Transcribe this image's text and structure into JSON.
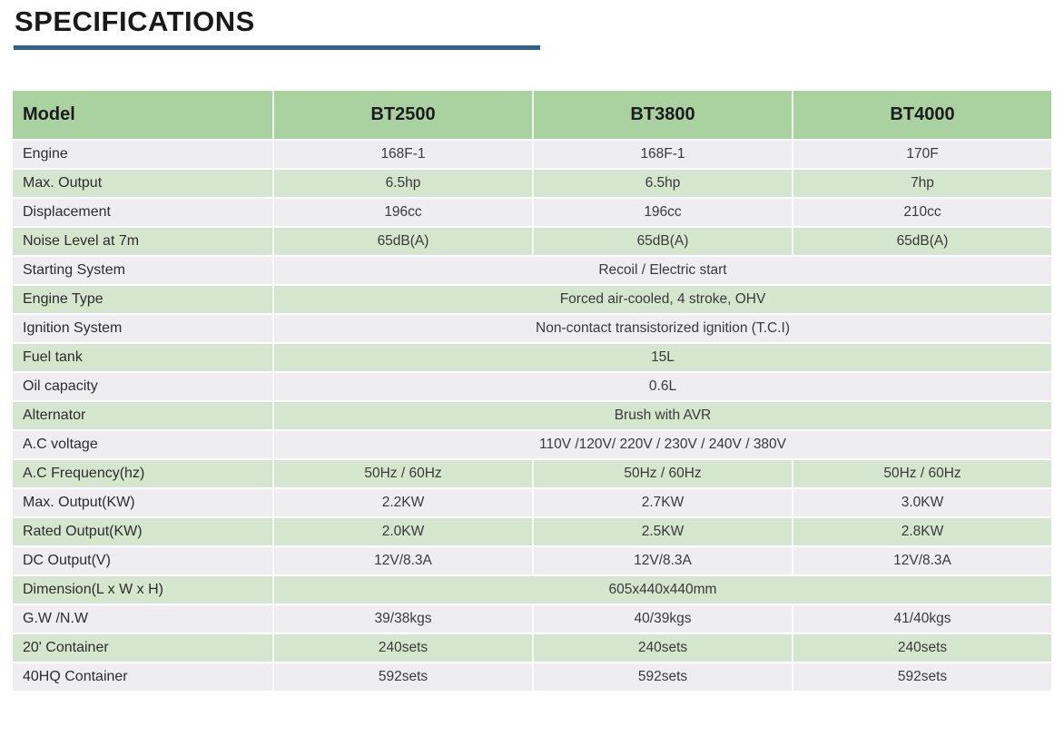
{
  "header": {
    "title": "SPECIFICATIONS"
  },
  "theme": {
    "title_color": "#1a1a1a",
    "rule_color": "#2e618e",
    "header_bg": "#aad1a0",
    "row_green_bg": "#d4e6cd",
    "row_gray_bg": "#eeedef",
    "label_text_color": "#2d2d2d",
    "value_text_color": "#3a3a3a"
  },
  "table": {
    "columns": [
      "Model",
      "BT2500",
      "BT3800",
      "BT4000"
    ],
    "rows": [
      {
        "label": "Engine",
        "values": [
          "168F-1",
          "168F-1",
          "170F"
        ]
      },
      {
        "label": "Max. Output",
        "values": [
          "6.5hp",
          "6.5hp",
          "7hp"
        ]
      },
      {
        "label": "Displacement",
        "values": [
          "196cc",
          "196cc",
          "210cc"
        ]
      },
      {
        "label": "Noise Level at 7m",
        "values": [
          "65dB(A)",
          "65dB(A)",
          "65dB(A)"
        ]
      },
      {
        "label": "Starting System",
        "span": "Recoil / Electric start"
      },
      {
        "label": "Engine Type",
        "span": "Forced air-cooled, 4 stroke, OHV"
      },
      {
        "label": "Ignition System",
        "span": "Non-contact transistorized ignition (T.C.I)"
      },
      {
        "label": "Fuel tank",
        "span": "15L"
      },
      {
        "label": "Oil capacity",
        "span": "0.6L"
      },
      {
        "label": "Alternator",
        "span": "Brush with AVR"
      },
      {
        "label": "A.C voltage",
        "span": "110V /120V/ 220V / 230V / 240V / 380V"
      },
      {
        "label": "A.C Frequency(hz)",
        "values": [
          "50Hz / 60Hz",
          "50Hz / 60Hz",
          "50Hz / 60Hz"
        ]
      },
      {
        "label": "Max. Output(KW)",
        "values": [
          "2.2KW",
          "2.7KW",
          "3.0KW"
        ]
      },
      {
        "label": "Rated Output(KW)",
        "values": [
          "2.0KW",
          "2.5KW",
          "2.8KW"
        ]
      },
      {
        "label": "DC Output(V)",
        "values": [
          "12V/8.3A",
          "12V/8.3A",
          "12V/8.3A"
        ]
      },
      {
        "label": "Dimension(L x W x H)",
        "span": "605x440x440mm"
      },
      {
        "label": "G.W /N.W",
        "values": [
          "39/38kgs",
          "40/39kgs",
          "41/40kgs"
        ]
      },
      {
        "label": "20' Container",
        "values": [
          "240sets",
          "240sets",
          "240sets"
        ]
      },
      {
        "label": "40HQ Container",
        "values": [
          "592sets",
          "592sets",
          "592sets"
        ]
      }
    ]
  }
}
